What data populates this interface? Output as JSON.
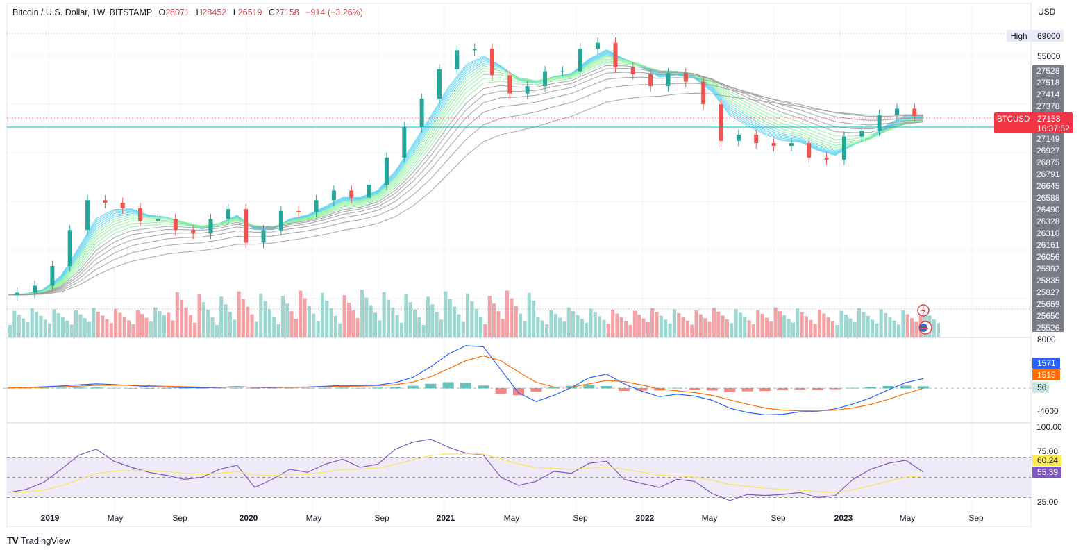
{
  "header": {
    "symbol": "Bitcoin / U.S. Dollar, 1W, BITSTAMP",
    "open_label": "O",
    "open": "28071",
    "high_label": "H",
    "high": "28452",
    "low_label": "L",
    "low": "26519",
    "close_label": "C",
    "close": "27158",
    "change": "−914 (−3.26%)"
  },
  "currency": "USD",
  "brand": {
    "name": "TradingView",
    "logo": "TV"
  },
  "chart_data": [
    {
      "type": "line",
      "title": "Bitcoin / U.S. Dollar, 1W, BITSTAMP",
      "x": [
        "2019-01",
        "2019-02",
        "2019-03",
        "2019-04",
        "2019-05",
        "2019-06",
        "2019-07",
        "2019-08",
        "2019-09",
        "2019-10",
        "2019-11",
        "2019-12",
        "2020-01",
        "2020-02",
        "2020-03",
        "2020-04",
        "2020-05",
        "2020-06",
        "2020-07",
        "2020-08",
        "2020-09",
        "2020-10",
        "2020-11",
        "2020-12",
        "2021-01",
        "2021-02",
        "2021-03",
        "2021-04",
        "2021-05",
        "2021-06",
        "2021-07",
        "2021-08",
        "2021-09",
        "2021-10",
        "2021-11",
        "2021-12",
        "2022-01",
        "2022-02",
        "2022-03",
        "2022-04",
        "2022-05",
        "2022-06",
        "2022-07",
        "2022-08",
        "2022-09",
        "2022-10",
        "2022-11",
        "2022-12",
        "2023-01",
        "2023-02",
        "2023-03",
        "2023-04",
        "2023-05"
      ],
      "series": [
        {
          "name": "BTCUSD",
          "values": [
            3600,
            3700,
            4000,
            5000,
            7500,
            10500,
            10200,
            9600,
            8300,
            8500,
            7500,
            7200,
            8500,
            9500,
            6500,
            7500,
            9300,
            9200,
            10500,
            11700,
            10800,
            12500,
            17000,
            24000,
            33000,
            46000,
            57000,
            58000,
            43000,
            35000,
            38000,
            45000,
            45000,
            58000,
            62000,
            47000,
            43500,
            38000,
            44000,
            40000,
            31000,
            20500,
            22000,
            20000,
            19400,
            20000,
            17000,
            16600,
            21500,
            23000,
            27500,
            29500,
            27158
          ]
        }
      ],
      "y_axis_labels": [
        "69000",
        "55000",
        "27528",
        "27518",
        "27414",
        "27378",
        "27149",
        "26927",
        "26875",
        "26791",
        "26645",
        "26588",
        "26490",
        "26328",
        "26310",
        "26161",
        "26056",
        "25992",
        "25835",
        "25827",
        "25669",
        "25650",
        "25526"
      ],
      "high_label": "High",
      "high_value": "69000",
      "price_tag": "BTCUSD",
      "price_value": "27158",
      "countdown": "16:37:52",
      "x_ticks": [
        "2019",
        "May",
        "Sep",
        "2020",
        "May",
        "Sep",
        "2021",
        "May",
        "Sep",
        "2022",
        "May",
        "Sep",
        "2023",
        "May",
        "Sep"
      ],
      "colors": {
        "up": "#26a69a",
        "down": "#ef5350",
        "last_price": "#f23645",
        "price_line": "#00bcd4",
        "axis_box": "#787b86"
      }
    },
    {
      "type": "bar",
      "series": [
        {
          "name": "MACD",
          "values": [
            60,
            120,
            220,
            350,
            550,
            700,
            600,
            420,
            250,
            150,
            80,
            40,
            120,
            250,
            120,
            80,
            150,
            180,
            300,
            450,
            420,
            520,
            900,
            1800,
            3500,
            5600,
            7000,
            6800,
            3000,
            -800,
            -2200,
            -1200,
            100,
            1700,
            2300,
            700,
            -500,
            -1400,
            -1000,
            -1300,
            -2000,
            -3300,
            -4000,
            -4400,
            -4300,
            -3900,
            -3800,
            -3400,
            -2600,
            -1600,
            -300,
            900,
            1571
          ]
        }
      ],
      "y_axis_labels": [
        "8000",
        "-4000"
      ],
      "values_labels": {
        "macd": "1571",
        "signal": "1515",
        "histogram": "56"
      },
      "colors": {
        "macd": "#2962ff",
        "signal": "#ff6d00",
        "hist_up": "#26a69a",
        "hist_down": "#ef5350"
      }
    },
    {
      "type": "line",
      "series": [
        {
          "name": "RSI",
          "values": [
            35,
            38,
            45,
            58,
            72,
            78,
            66,
            60,
            55,
            52,
            48,
            50,
            58,
            62,
            40,
            48,
            58,
            55,
            63,
            68,
            60,
            63,
            78,
            85,
            88,
            80,
            74,
            72,
            50,
            42,
            46,
            56,
            54,
            64,
            66,
            48,
            44,
            40,
            48,
            46,
            34,
            27,
            33,
            32,
            33,
            35,
            30,
            32,
            48,
            58,
            64,
            67,
            55.39
          ]
        }
      ],
      "y_axis_labels": [
        "100.00",
        "75.00",
        "25.00"
      ],
      "values_labels": {
        "rsi_ma": "60.24",
        "rsi": "55.39"
      },
      "ylim": [
        0,
        100
      ],
      "colors": {
        "rsi": "#7e57c2",
        "ma": "#fbe55b",
        "band": "#efeaf7"
      }
    }
  ]
}
